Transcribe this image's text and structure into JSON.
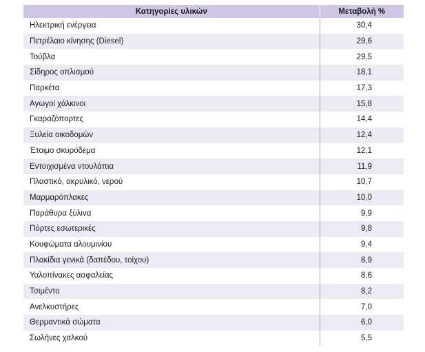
{
  "table": {
    "headers": [
      "Κατηγορίες υλικών",
      "Μεταβολή %"
    ],
    "rows": [
      {
        "material": "Ηλεκτρική ενέργεια",
        "change": "30,4"
      },
      {
        "material": "Πετρέλαιο κίνησης (Diesel)",
        "change": "29,6"
      },
      {
        "material": "Τούβλα",
        "change": "29,5"
      },
      {
        "material": "Σίδηρος οπλισμού",
        "change": "18,1"
      },
      {
        "material": "Παρκέτα",
        "change": "17,3"
      },
      {
        "material": "Αγωγοί χάλκινοι",
        "change": "15,8"
      },
      {
        "material": "Γκαραζόπορτες",
        "change": "14,4"
      },
      {
        "material": "Ξυλεία οικοδομών",
        "change": "12,4"
      },
      {
        "material": "Έτοιμο σκυρόδεμα",
        "change": "12,1"
      },
      {
        "material": "Εντοιχισμένα ντουλάπια",
        "change": "11,9"
      },
      {
        "material": "Πλαστικό, ακρυλικό, νερού",
        "change": "10,7"
      },
      {
        "material": "Μαρμαρόπλακες",
        "change": "10,0"
      },
      {
        "material": "Παράθυρα ξύλινα",
        "change": "9,9"
      },
      {
        "material": "Πόρτες εσωτερικές",
        "change": "9,8"
      },
      {
        "material": "Κουφώματα αλουμινίου",
        "change": "9,4"
      },
      {
        "material": "Πλακίδια γενικά (δαπέδου, τοίχου)",
        "change": "8,9"
      },
      {
        "material": "Υαλοπίνακες ασφαλείας",
        "change": "8,6"
      },
      {
        "material": "Τσιμέντο",
        "change": "8,2"
      },
      {
        "material": "Ανελκυστήρες",
        "change": "7,0"
      },
      {
        "material": "Θερμαντικά σώματα",
        "change": "6,0"
      },
      {
        "material": "Σωλήνες χαλκού",
        "change": "5,5"
      }
    ]
  },
  "colors": {
    "header_bg": "#cfc6e3",
    "stripe_bg": "#ecebf4",
    "divider": "#a6a6a6"
  }
}
